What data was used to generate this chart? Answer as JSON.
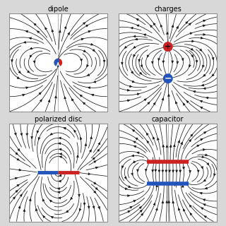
{
  "title_dipole": "dipole",
  "title_charges": "charges",
  "title_polarized": "polarized disc",
  "title_capacitor": "capacitor",
  "background_color": "#ffffff",
  "line_color": "#1a1a1a",
  "positive_color": "#cc2222",
  "negative_color": "#2255bb",
  "fig_bg": "#d8d8d8",
  "spine_color": "#888888",
  "vline_color": "#999999"
}
